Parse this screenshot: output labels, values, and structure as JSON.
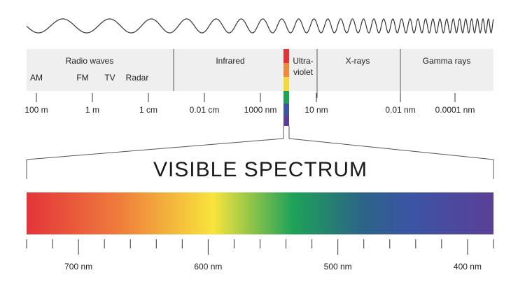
{
  "em_spectrum": {
    "bands": [
      "Radio waves",
      "Infrared",
      "X-rays",
      "Gamma rays"
    ],
    "ultraviolet": [
      "Ultra-",
      "violet"
    ],
    "radio_sub": [
      "AM",
      "FM",
      "TV",
      "Radar"
    ],
    "scale": [
      "100 m",
      "1 m",
      "1 cm",
      "0.01 cm",
      "1000 nm",
      "10 nm",
      "0.01 nm",
      "0.0001 nm"
    ]
  },
  "visible": {
    "title": "VISIBLE SPECTRUM",
    "scale": [
      "700 nm",
      "600 nm",
      "500 nm",
      "400 nm"
    ]
  }
}
